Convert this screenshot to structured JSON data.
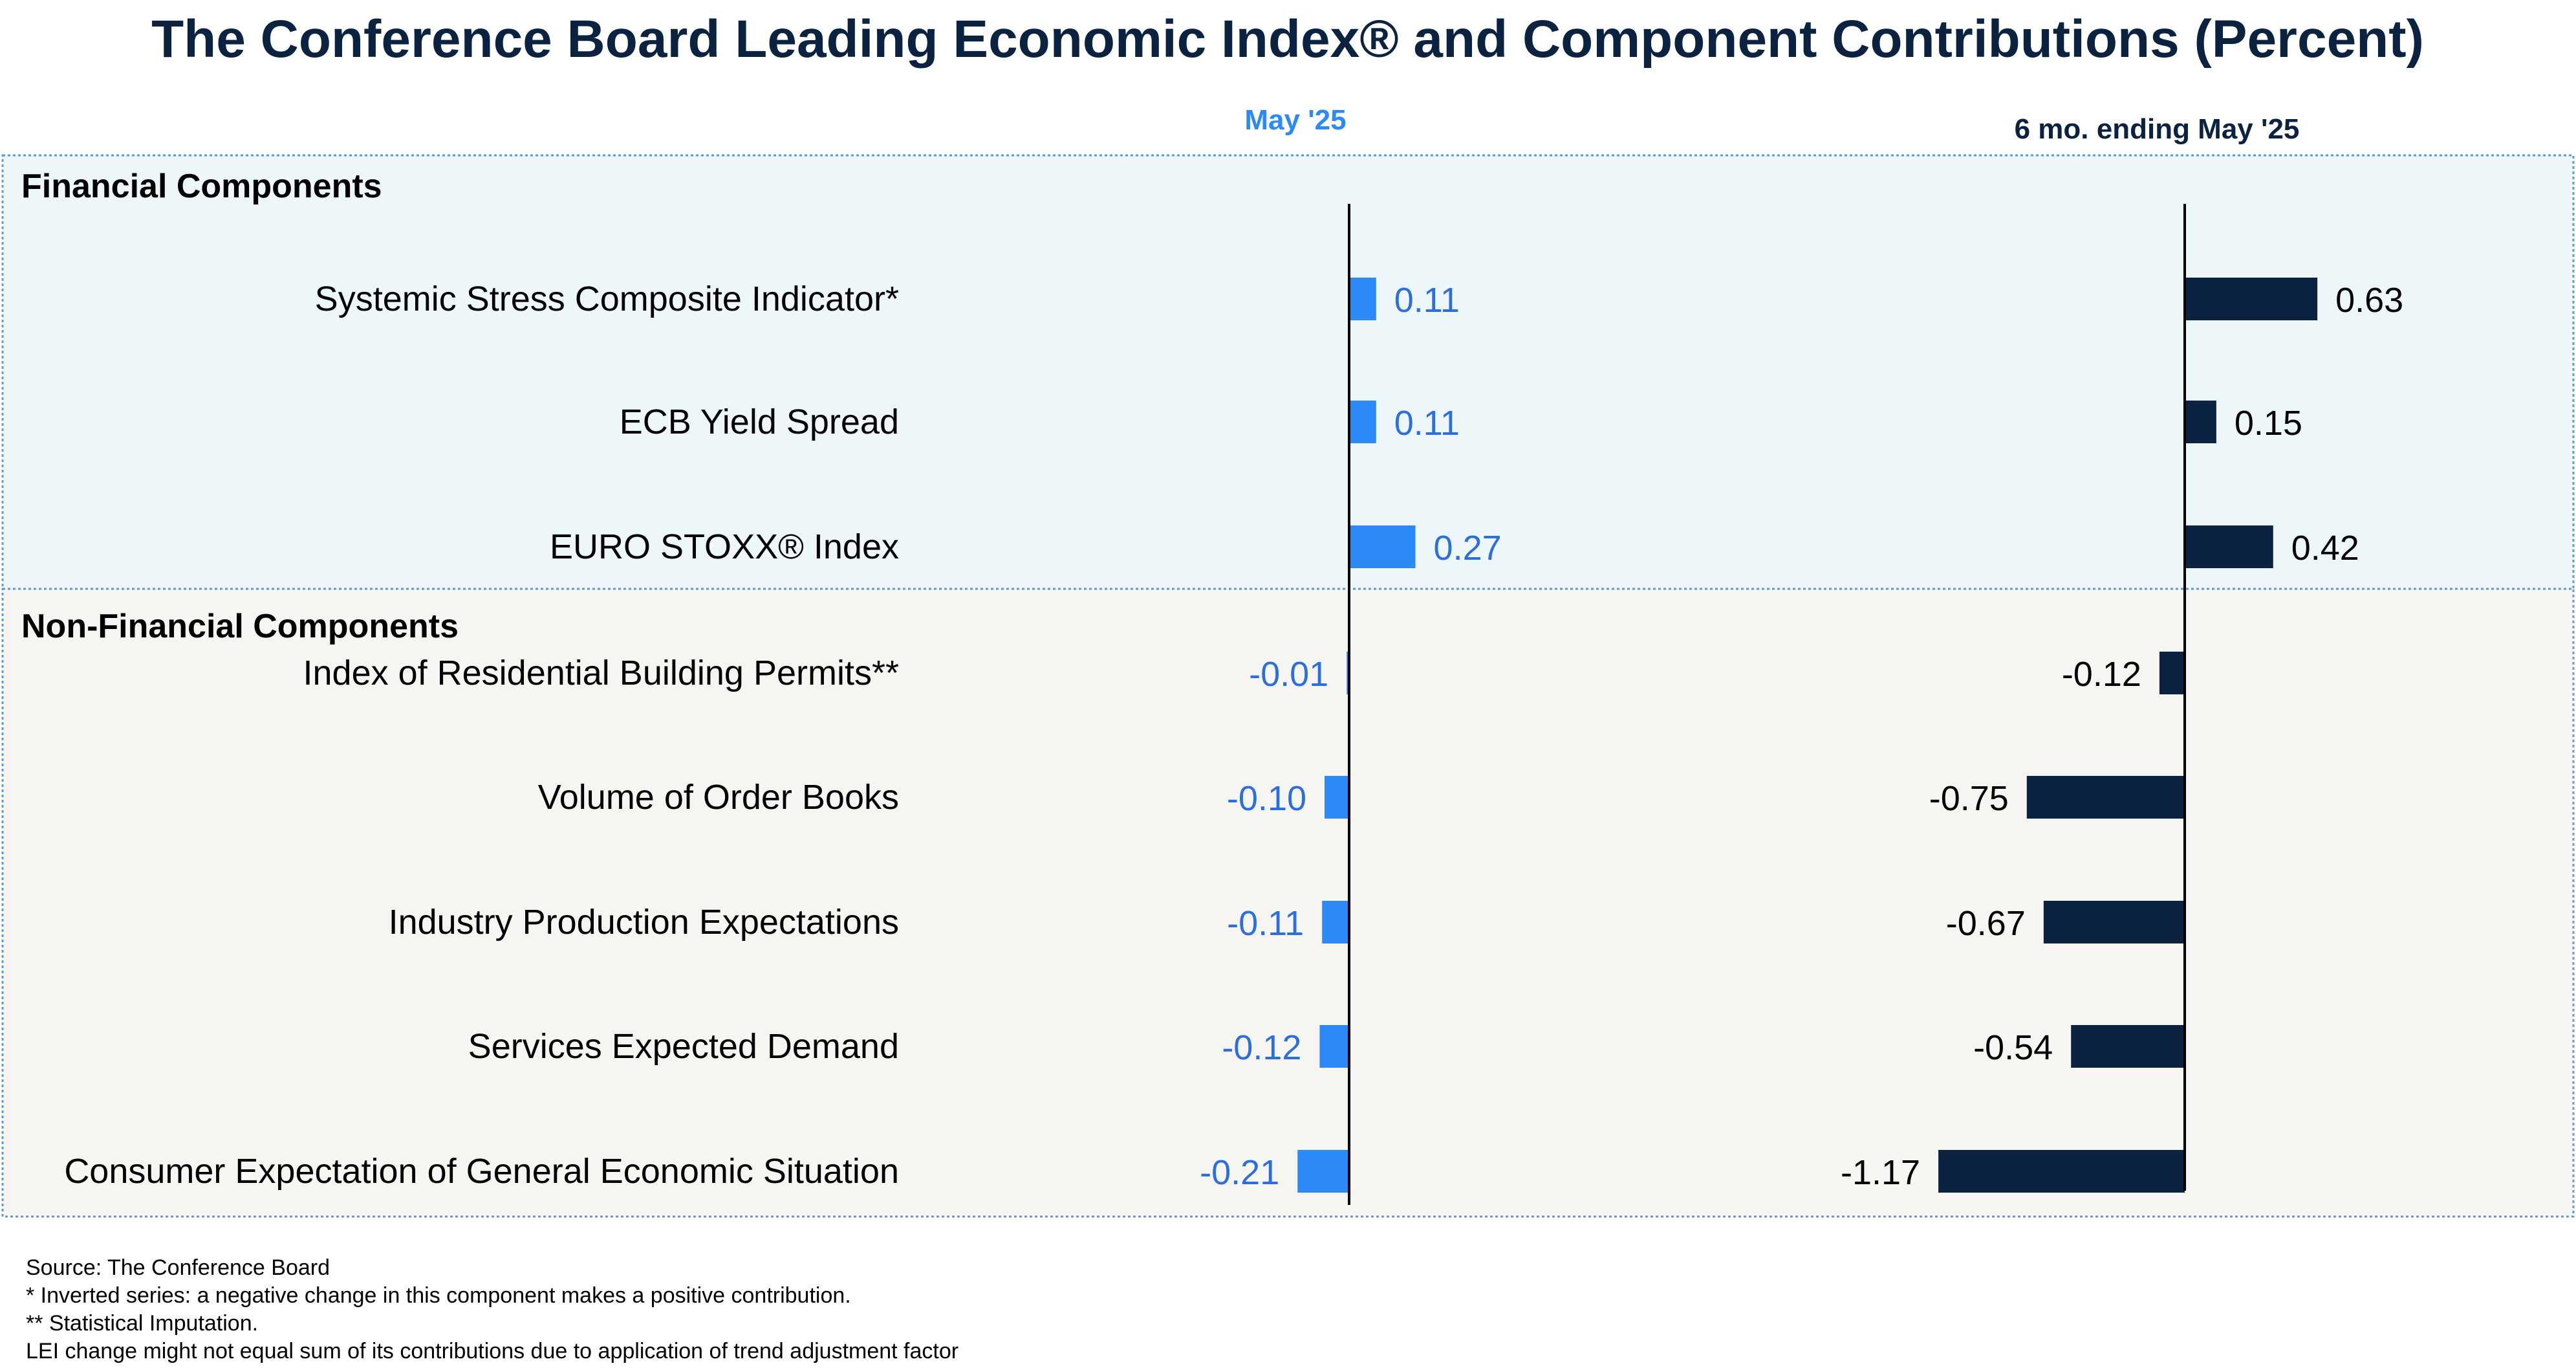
{
  "chart_data": {
    "type": "bar",
    "orientation": "horizontal",
    "title": "The Conference Board Leading Economic Index® and Component Contributions (Percent)",
    "groups": [
      {
        "name": "Financial Components",
        "rows": [
          0,
          1,
          2
        ],
        "background": "#edf6f8"
      },
      {
        "name": "Non-Financial Components",
        "rows": [
          3,
          4,
          5,
          6,
          7
        ],
        "background": "#f6f5f2"
      }
    ],
    "categories": [
      "Systemic Stress Composite Indicator*",
      "ECB Yield Spread",
      "EURO STOXX® Index",
      "Index of Residential Building Permits**",
      "Volume of Order Books",
      "Industry Production Expectations",
      "Services Expected Demand",
      "Consumer Expectation of General Economic Situation"
    ],
    "series": [
      {
        "name": "May '25",
        "values": [
          0.11,
          0.11,
          0.27,
          -0.01,
          -0.1,
          -0.11,
          -0.12,
          -0.21
        ],
        "labels": [
          "0.11",
          "0.11",
          "0.27",
          "-0.01",
          "-0.10",
          "-0.11",
          "-0.12",
          "-0.21"
        ],
        "color": "#2b8af7",
        "label_color": "#2b6fde",
        "header_color": "#2b8af7",
        "xlim": [
          -0.85,
          1.52
        ]
      },
      {
        "name": "6 mo. ending May '25",
        "values": [
          0.63,
          0.15,
          0.42,
          -0.12,
          -0.75,
          -0.67,
          -0.54,
          -1.17
        ],
        "labels": [
          "0.63",
          "0.15",
          "0.42",
          "-0.12",
          "-0.75",
          "-0.67",
          "-0.54",
          "-1.17"
        ],
        "color": "#0b2341",
        "label_color": "#000000",
        "header_color": "#0b2341",
        "xlim": [
          -2.3,
          2.0
        ]
      }
    ],
    "grid": false,
    "legend": "none"
  },
  "colors": {
    "title": "#0b2341",
    "frame": "#5b9bd5",
    "axis": "#000000"
  },
  "footnotes": [
    "Source: The Conference Board",
    "* Inverted series: a negative change in this component makes a positive contribution.",
    "**  Statistical Imputation.",
    "LEI change might not equal sum of its contributions due to application of trend adjustment factor"
  ]
}
